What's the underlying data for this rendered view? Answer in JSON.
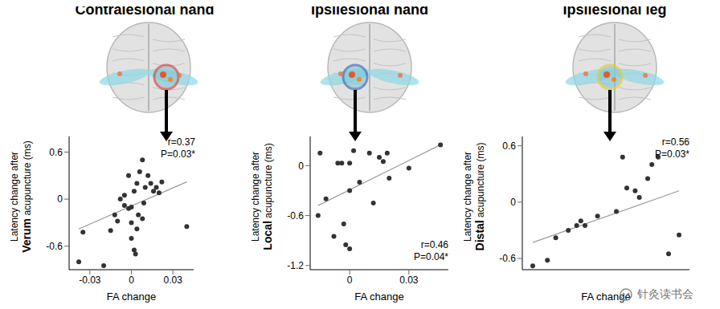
{
  "chart_data": [
    {
      "type": "scatter",
      "title": "Contralesional hand",
      "ylabel_line1": "Latency change after",
      "ylabel_bold": "Verum",
      "ylabel_rest": " acupuncture (ms)",
      "xlabel": "FA change",
      "x": [
        -0.038,
        -0.035,
        -0.02,
        -0.015,
        -0.012,
        -0.008,
        -0.005,
        -0.002,
        0,
        0,
        0.002,
        0.003,
        0.004,
        0.006,
        0.008,
        0.009,
        0.01,
        0.012,
        0.014,
        0.016,
        0.018,
        0.02,
        -0.01,
        0.005,
        0.004,
        0.002,
        0.022,
        0.04,
        -0.005,
        0,
        0.008,
        -0.002
      ],
      "values": [
        -0.8,
        -0.42,
        -0.85,
        -0.4,
        -0.2,
        0,
        0.05,
        -0.12,
        -0.3,
        -0.5,
        -0.65,
        -0.7,
        0.2,
        0.35,
        0.5,
        -0.05,
        0.15,
        0.3,
        0.2,
        0.1,
        0.15,
        0.08,
        -0.28,
        -0.2,
        -0.38,
        0.1,
        0.22,
        -0.35,
        -0.08,
        -0.1,
        -0.25,
        0.3
      ],
      "fit": {
        "x": [
          -0.038,
          0.04
        ],
        "y": [
          -0.38,
          0.22
        ]
      },
      "xlim": [
        -0.045,
        0.045
      ],
      "xticks": [
        -0.03,
        0,
        0.03
      ],
      "ylim": [
        -0.9,
        0.8
      ],
      "yticks": [
        -0.6,
        0,
        0.6
      ],
      "annotations": [
        "r=0.37",
        "P=0.03*"
      ],
      "color": "#333333"
    },
    {
      "type": "scatter",
      "title": "Ipsilesional hand",
      "ylabel_line1": "Latency change after",
      "ylabel_bold": "Local",
      "ylabel_rest": " acupuncture (ms)",
      "xlabel": "FA change",
      "x": [
        -0.016,
        -0.015,
        -0.012,
        -0.008,
        -0.006,
        -0.004,
        -0.003,
        -0.002,
        0,
        0,
        0,
        0.002,
        0.005,
        0.01,
        0.012,
        0.015,
        0.017,
        0.019,
        0.02,
        0.03,
        0.046
      ],
      "values": [
        -0.6,
        0.15,
        -0.4,
        -0.85,
        0.03,
        0.03,
        -0.7,
        -0.95,
        0.03,
        -0.3,
        -1.0,
        0.18,
        -0.2,
        0.15,
        -0.45,
        0.1,
        0.05,
        0.15,
        -0.15,
        -0.03,
        0.25
      ],
      "fit": {
        "x": [
          -0.016,
          0.046
        ],
        "y": [
          -0.48,
          0.25
        ]
      },
      "xlim": [
        -0.02,
        0.05
      ],
      "xticks": [
        0,
        0.03
      ],
      "ylim": [
        -1.25,
        0.35
      ],
      "yticks": [
        -1.2,
        -0.6,
        0
      ],
      "annotations": [
        "r=0.46",
        "P=0.04*"
      ],
      "color": "#333333"
    },
    {
      "type": "scatter",
      "title": "Ipsilesional leg",
      "ylabel_line1": "Latency change after",
      "ylabel_bold": "Distal",
      "ylabel_rest": " acupuncture (ms)",
      "xlabel": "FA change",
      "x": [
        -0.035,
        -0.028,
        -0.024,
        -0.018,
        -0.014,
        -0.012,
        -0.01,
        -0.004,
        0.005,
        0.008,
        0.01,
        0.014,
        0.016,
        0.02,
        0.022,
        0.025,
        0.03,
        0.035
      ],
      "values": [
        -0.68,
        -0.62,
        -0.38,
        -0.3,
        -0.25,
        -0.2,
        -0.25,
        -0.15,
        -0.1,
        0.48,
        0.15,
        0.12,
        0.05,
        0.25,
        0.4,
        0.48,
        -0.55,
        -0.35
      ],
      "fit": {
        "x": [
          -0.035,
          0.035
        ],
        "y": [
          -0.43,
          0.12
        ]
      },
      "xlim": [
        -0.04,
        0.04
      ],
      "ylim": [
        -0.72,
        0.7
      ],
      "yticks": [
        -0.6,
        0,
        0.6
      ],
      "tick_labels": "y",
      "annotations": [
        "r=0.56",
        "P=0.03*"
      ],
      "color": "#333333"
    }
  ],
  "watermark": "针灸读书会"
}
